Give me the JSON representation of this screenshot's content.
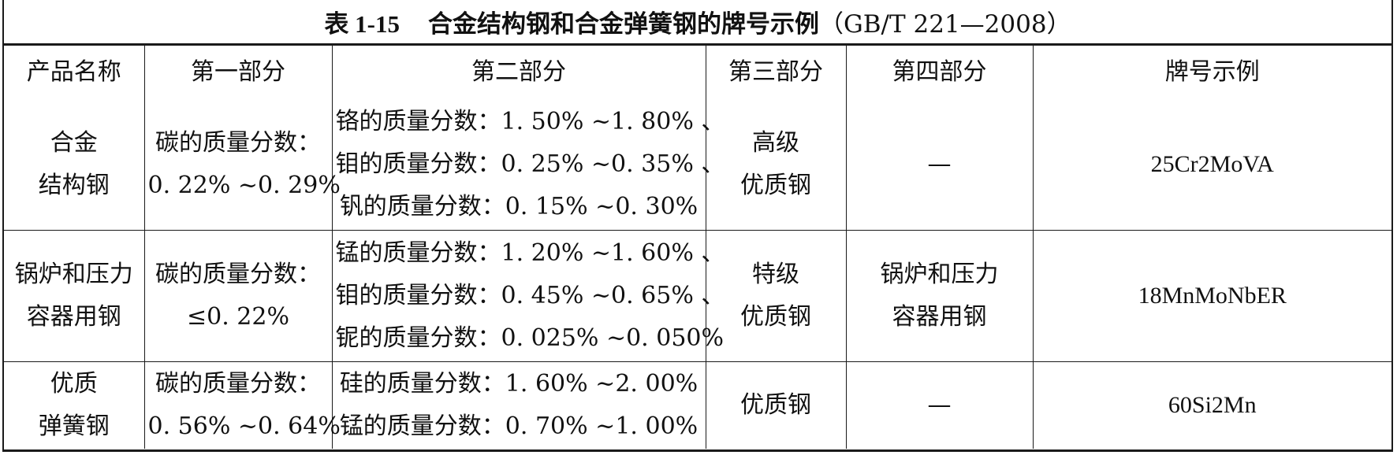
{
  "title": {
    "number": "表 1-15",
    "text": "合金结构钢和合金弹簧钢的牌号示例",
    "standard": "（GB/T 221—2008）"
  },
  "headers": [
    "产品名称",
    "第一部分",
    "第二部分",
    "第三部分",
    "第四部分",
    "牌号示例"
  ],
  "rows": [
    {
      "product": [
        "合金",
        "结构钢"
      ],
      "part1": [
        "碳的质量分数：",
        "0. 22% ~0. 29%"
      ],
      "part2": [
        "铬的质量分数：1. 50% ~1. 80% 、",
        "钼的质量分数：0. 25% ~0. 35% 、",
        "钒的质量分数：0. 15% ~0. 30%"
      ],
      "part3": [
        "高级",
        "优质钢"
      ],
      "part4": [
        "—"
      ],
      "example": "25Cr2MoVA"
    },
    {
      "product": [
        "锅炉和压力",
        "容器用钢"
      ],
      "part1": [
        "碳的质量分数：",
        "≤0. 22%"
      ],
      "part2": [
        "锰的质量分数：1. 20% ~1. 60% 、",
        "钼的质量分数：0. 45% ~0. 65% 、",
        "铌的质量分数：0. 025% ~0. 050%"
      ],
      "part3": [
        "特级",
        "优质钢"
      ],
      "part4": [
        "锅炉和压力",
        "容器用钢"
      ],
      "example": "18MnMoNbER"
    },
    {
      "product": [
        "优质",
        "弹簧钢"
      ],
      "part1": [
        "碳的质量分数：",
        "0. 56% ~0. 64%"
      ],
      "part2": [
        "硅的质量分数：1. 60% ~2. 00%",
        "锰的质量分数：0. 70% ~1. 00%"
      ],
      "part3": [
        "优质钢"
      ],
      "part4": [
        "—"
      ],
      "example": "60Si2Mn"
    }
  ]
}
